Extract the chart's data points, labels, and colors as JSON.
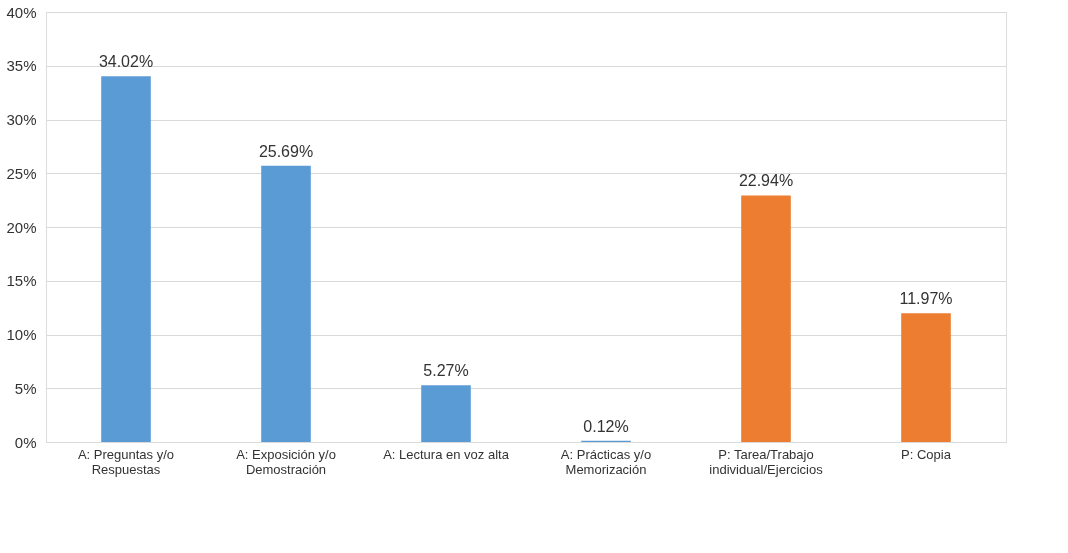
{
  "chart_data": {
    "type": "bar",
    "categories": [
      "A: Preguntas y/o Respuestas",
      "A: Exposición y/o Demostración",
      "A: Lectura en voz alta",
      "A: Prácticas y/o Memorización",
      "P: Tarea/Trabajo individual/Ejercicios",
      "P: Copia"
    ],
    "values": [
      34.02,
      25.69,
      5.27,
      0.12,
      22.94,
      11.97
    ],
    "value_labels": [
      "34.02%",
      "25.69%",
      "5.27%",
      "0.12%",
      "22.94%",
      "11.97%"
    ],
    "colors": [
      "#5b9bd5",
      "#5b9bd5",
      "#5b9bd5",
      "#5b9bd5",
      "#ed7d31",
      "#ed7d31"
    ],
    "ylim": [
      0,
      40
    ],
    "yticks": [
      {
        "value": 0,
        "label": "0%"
      },
      {
        "value": 5,
        "label": "5%"
      },
      {
        "value": 10,
        "label": "10%"
      },
      {
        "value": 15,
        "label": "15%"
      },
      {
        "value": 20,
        "label": "20%"
      },
      {
        "value": 25,
        "label": "25%"
      },
      {
        "value": 30,
        "label": "30%"
      },
      {
        "value": 35,
        "label": "35%"
      },
      {
        "value": 40,
        "label": "40%"
      }
    ],
    "grid": "y"
  }
}
